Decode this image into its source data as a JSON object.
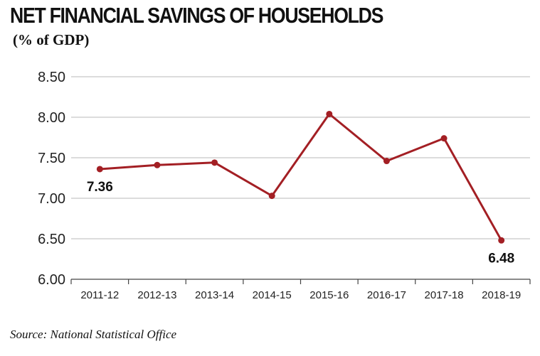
{
  "title": "NET FINANCIAL SAVINGS OF HOUSEHOLDS",
  "subtitle": "(% of GDP)",
  "source": "Source: National Statistical Office",
  "colors": {
    "line": "#a31f24",
    "grid": "#c8c8c8",
    "axis": "#444444"
  },
  "chart_data": {
    "type": "line",
    "title": "NET FINANCIAL SAVINGS OF HOUSEHOLDS",
    "ylabel": "% of GDP",
    "xlabel": "",
    "categories": [
      "2011-12",
      "2012-13",
      "2013-14",
      "2014-15",
      "2015-16",
      "2016-17",
      "2017-18",
      "2018-19"
    ],
    "series": [
      {
        "name": "Net financial savings",
        "values": [
          7.36,
          7.41,
          7.44,
          7.03,
          8.04,
          7.46,
          7.74,
          6.48
        ]
      }
    ],
    "ylim": [
      6.0,
      8.5
    ],
    "yticks": [
      "8.50",
      "8.00",
      "7.50",
      "7.00",
      "6.50",
      "6.00"
    ],
    "grid": true,
    "annotations": [
      {
        "index": 0,
        "text": "7.36"
      },
      {
        "index": 7,
        "text": "6.48"
      }
    ]
  }
}
